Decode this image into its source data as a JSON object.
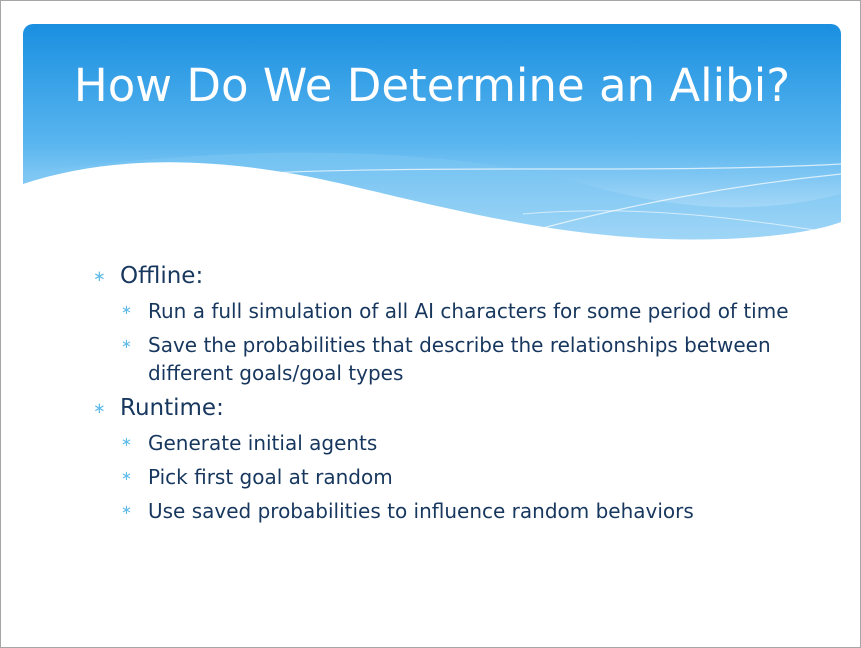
{
  "slide": {
    "title": "How Do We Determine an Alibi?",
    "bullets": [
      {
        "text": "Offline:",
        "children": [
          "Run a full simulation of all AI characters for some period of time",
          "Save the probabilities that describe the relationships between different goals/goal types"
        ]
      },
      {
        "text": "Runtime:",
        "children": [
          "Generate initial agents",
          "Pick first goal at random",
          "Use saved probabilities to influence random behaviors"
        ]
      }
    ],
    "bullet_glyph": "∗"
  },
  "colors": {
    "header_top": "#1a8fe0",
    "header_bottom": "#bfe4fb",
    "title_text": "#ffffff",
    "body_text": "#17375e",
    "bullet": "#5fbbe8"
  }
}
